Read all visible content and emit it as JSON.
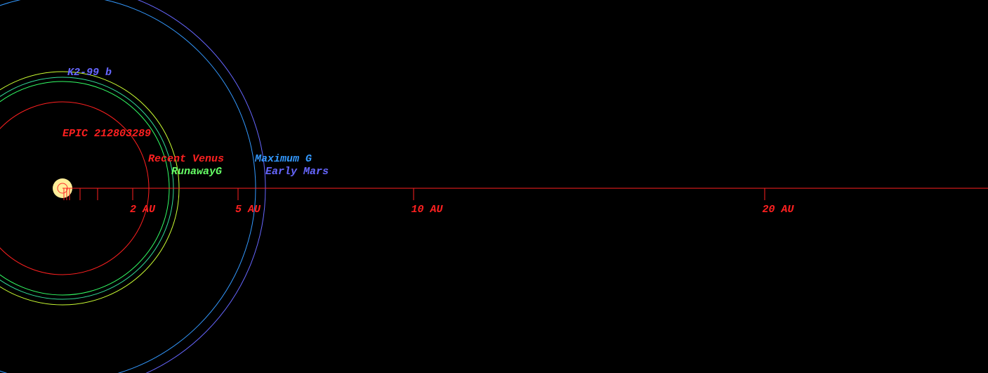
{
  "star": {
    "label": "EPIC 212803289"
  },
  "planet": {
    "label": "K2-99 b"
  },
  "zones": {
    "recent_venus": "Recent Venus",
    "runaway_greenhouse": "RunawayG",
    "maximum_greenhouse": "Maximum G",
    "early_mars": "Early Mars"
  },
  "scale": {
    "ticks": [
      "2 AU",
      "5 AU",
      "10 AU",
      "20 AU"
    ]
  }
}
